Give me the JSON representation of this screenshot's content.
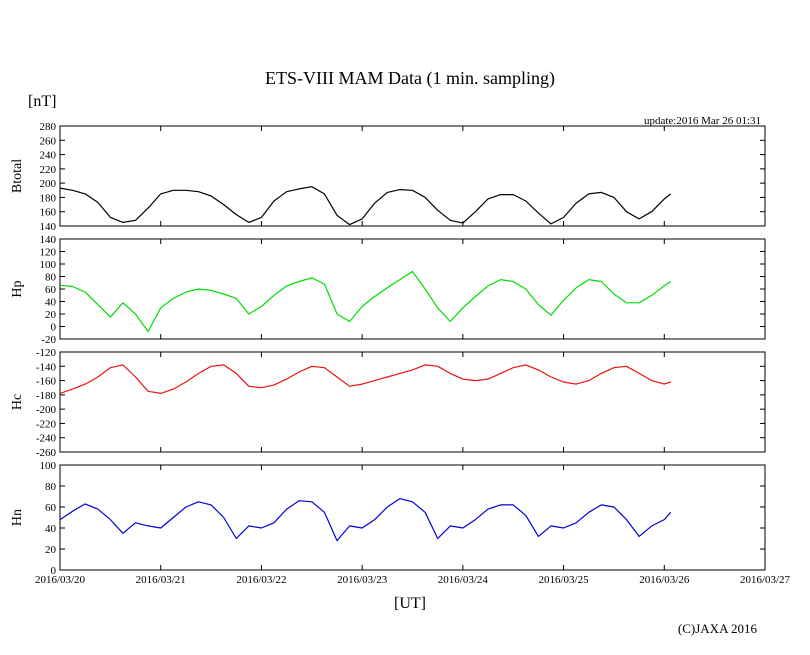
{
  "page": {
    "title": "ETS-VIII MAM Data (1 min. sampling)",
    "unit_label": "[nT]",
    "update_text": "update:2016 Mar 26 01:31",
    "xlabel": "[UT]",
    "copyright": "(C)JAXA 2016"
  },
  "colors": {
    "btotal": "#000000",
    "hp": "#00dd00",
    "hc": "#ee1111",
    "hn": "#0000dd"
  },
  "chart_data": [
    {
      "type": "line",
      "ylabel": "Btotal",
      "ylim": [
        140,
        280
      ],
      "yticks": [
        140,
        160,
        180,
        200,
        220,
        240,
        260,
        280
      ],
      "xlim": [
        "2016/03/20",
        "2016/03/27"
      ],
      "xticks": [
        "2016/03/20",
        "2016/03/21",
        "2016/03/22",
        "2016/03/23",
        "2016/03/24",
        "2016/03/25",
        "2016/03/26",
        "2016/03/27"
      ],
      "grid": false,
      "series": [
        {
          "color_key": "btotal",
          "x": [
            "2016/03/20 00:00",
            "2016/03/20 03:00",
            "2016/03/20 06:00",
            "2016/03/20 09:00",
            "2016/03/20 12:00",
            "2016/03/20 15:00",
            "2016/03/20 18:00",
            "2016/03/20 21:00",
            "2016/03/21 00:00",
            "2016/03/21 03:00",
            "2016/03/21 06:00",
            "2016/03/21 09:00",
            "2016/03/21 12:00",
            "2016/03/21 15:00",
            "2016/03/21 18:00",
            "2016/03/21 21:00",
            "2016/03/22 00:00",
            "2016/03/22 03:00",
            "2016/03/22 06:00",
            "2016/03/22 09:00",
            "2016/03/22 12:00",
            "2016/03/22 15:00",
            "2016/03/22 18:00",
            "2016/03/22 21:00",
            "2016/03/23 00:00",
            "2016/03/23 03:00",
            "2016/03/23 06:00",
            "2016/03/23 09:00",
            "2016/03/23 12:00",
            "2016/03/23 15:00",
            "2016/03/23 18:00",
            "2016/03/23 21:00",
            "2016/03/24 00:00",
            "2016/03/24 03:00",
            "2016/03/24 06:00",
            "2016/03/24 09:00",
            "2016/03/24 12:00",
            "2016/03/24 15:00",
            "2016/03/24 18:00",
            "2016/03/24 21:00",
            "2016/03/25 00:00",
            "2016/03/25 03:00",
            "2016/03/25 06:00",
            "2016/03/25 09:00",
            "2016/03/25 12:00",
            "2016/03/25 15:00",
            "2016/03/25 18:00",
            "2016/03/25 21:00",
            "2016/03/26 00:00",
            "2016/03/26 01:31"
          ],
          "y": [
            193,
            190,
            185,
            173,
            152,
            145,
            148,
            165,
            185,
            190,
            190,
            188,
            182,
            170,
            156,
            145,
            152,
            175,
            188,
            192,
            195,
            185,
            155,
            142,
            150,
            172,
            187,
            191,
            190,
            180,
            162,
            148,
            144,
            160,
            178,
            184,
            184,
            175,
            158,
            143,
            152,
            172,
            185,
            187,
            180,
            160,
            150,
            160,
            178,
            185
          ]
        }
      ]
    },
    {
      "type": "line",
      "ylabel": "Hp",
      "ylim": [
        -20,
        140
      ],
      "yticks": [
        -20,
        0,
        20,
        40,
        60,
        80,
        100,
        120,
        140
      ],
      "xlim": [
        "2016/03/20",
        "2016/03/27"
      ],
      "xticks": [
        "2016/03/20",
        "2016/03/21",
        "2016/03/22",
        "2016/03/23",
        "2016/03/24",
        "2016/03/25",
        "2016/03/26",
        "2016/03/27"
      ],
      "grid": false,
      "series": [
        {
          "color_key": "hp",
          "x": [
            "2016/03/20 00:00",
            "2016/03/20 03:00",
            "2016/03/20 06:00",
            "2016/03/20 09:00",
            "2016/03/20 12:00",
            "2016/03/20 15:00",
            "2016/03/20 18:00",
            "2016/03/20 21:00",
            "2016/03/21 00:00",
            "2016/03/21 03:00",
            "2016/03/21 06:00",
            "2016/03/21 09:00",
            "2016/03/21 12:00",
            "2016/03/21 15:00",
            "2016/03/21 18:00",
            "2016/03/21 21:00",
            "2016/03/22 00:00",
            "2016/03/22 03:00",
            "2016/03/22 06:00",
            "2016/03/22 09:00",
            "2016/03/22 12:00",
            "2016/03/22 15:00",
            "2016/03/22 18:00",
            "2016/03/22 21:00",
            "2016/03/23 00:00",
            "2016/03/23 03:00",
            "2016/03/23 06:00",
            "2016/03/23 09:00",
            "2016/03/23 12:00",
            "2016/03/23 15:00",
            "2016/03/23 18:00",
            "2016/03/23 21:00",
            "2016/03/24 00:00",
            "2016/03/24 03:00",
            "2016/03/24 06:00",
            "2016/03/24 09:00",
            "2016/03/24 12:00",
            "2016/03/24 15:00",
            "2016/03/24 18:00",
            "2016/03/24 21:00",
            "2016/03/25 00:00",
            "2016/03/25 03:00",
            "2016/03/25 06:00",
            "2016/03/25 09:00",
            "2016/03/25 12:00",
            "2016/03/25 15:00",
            "2016/03/25 18:00",
            "2016/03/25 21:00",
            "2016/03/26 00:00",
            "2016/03/26 01:31"
          ],
          "y": [
            66,
            64,
            55,
            35,
            15,
            38,
            20,
            -8,
            30,
            45,
            55,
            60,
            58,
            52,
            45,
            20,
            32,
            50,
            65,
            72,
            78,
            68,
            20,
            8,
            32,
            48,
            62,
            75,
            88,
            60,
            30,
            8,
            30,
            48,
            65,
            75,
            72,
            60,
            35,
            18,
            42,
            62,
            75,
            72,
            52,
            38,
            38,
            50,
            65,
            72
          ]
        }
      ]
    },
    {
      "type": "line",
      "ylabel": "Hc",
      "ylim": [
        -260,
        -120
      ],
      "yticks": [
        -260,
        -240,
        -220,
        -200,
        -180,
        -160,
        -140,
        -120
      ],
      "xlim": [
        "2016/03/20",
        "2016/03/27"
      ],
      "xticks": [
        "2016/03/20",
        "2016/03/21",
        "2016/03/22",
        "2016/03/23",
        "2016/03/24",
        "2016/03/25",
        "2016/03/26",
        "2016/03/27"
      ],
      "grid": false,
      "series": [
        {
          "color_key": "hc",
          "x": [
            "2016/03/20 00:00",
            "2016/03/20 03:00",
            "2016/03/20 06:00",
            "2016/03/20 09:00",
            "2016/03/20 12:00",
            "2016/03/20 15:00",
            "2016/03/20 18:00",
            "2016/03/20 21:00",
            "2016/03/21 00:00",
            "2016/03/21 03:00",
            "2016/03/21 06:00",
            "2016/03/21 09:00",
            "2016/03/21 12:00",
            "2016/03/21 15:00",
            "2016/03/21 18:00",
            "2016/03/21 21:00",
            "2016/03/22 00:00",
            "2016/03/22 03:00",
            "2016/03/22 06:00",
            "2016/03/22 09:00",
            "2016/03/22 12:00",
            "2016/03/22 15:00",
            "2016/03/22 18:00",
            "2016/03/22 21:00",
            "2016/03/23 00:00",
            "2016/03/23 03:00",
            "2016/03/23 06:00",
            "2016/03/23 09:00",
            "2016/03/23 12:00",
            "2016/03/23 15:00",
            "2016/03/23 18:00",
            "2016/03/23 21:00",
            "2016/03/24 00:00",
            "2016/03/24 03:00",
            "2016/03/24 06:00",
            "2016/03/24 09:00",
            "2016/03/24 12:00",
            "2016/03/24 15:00",
            "2016/03/24 18:00",
            "2016/03/24 21:00",
            "2016/03/25 00:00",
            "2016/03/25 03:00",
            "2016/03/25 06:00",
            "2016/03/25 09:00",
            "2016/03/25 12:00",
            "2016/03/25 15:00",
            "2016/03/25 18:00",
            "2016/03/25 21:00",
            "2016/03/26 00:00",
            "2016/03/26 01:31"
          ],
          "y": [
            -178,
            -172,
            -165,
            -155,
            -142,
            -138,
            -155,
            -175,
            -178,
            -172,
            -162,
            -150,
            -140,
            -138,
            -150,
            -168,
            -170,
            -166,
            -158,
            -148,
            -140,
            -142,
            -155,
            -168,
            -165,
            -160,
            -155,
            -150,
            -145,
            -138,
            -140,
            -150,
            -158,
            -160,
            -158,
            -150,
            -142,
            -138,
            -145,
            -155,
            -162,
            -165,
            -160,
            -150,
            -142,
            -140,
            -150,
            -160,
            -165,
            -162
          ]
        }
      ]
    },
    {
      "type": "line",
      "ylabel": "Hn",
      "ylim": [
        0,
        100
      ],
      "yticks": [
        0,
        20,
        40,
        60,
        80,
        100
      ],
      "xlim": [
        "2016/03/20",
        "2016/03/27"
      ],
      "xticks": [
        "2016/03/20",
        "2016/03/21",
        "2016/03/22",
        "2016/03/23",
        "2016/03/24",
        "2016/03/25",
        "2016/03/26",
        "2016/03/27"
      ],
      "grid": false,
      "series": [
        {
          "color_key": "hn",
          "x": [
            "2016/03/20 00:00",
            "2016/03/20 03:00",
            "2016/03/20 06:00",
            "2016/03/20 09:00",
            "2016/03/20 12:00",
            "2016/03/20 15:00",
            "2016/03/20 18:00",
            "2016/03/20 21:00",
            "2016/03/21 00:00",
            "2016/03/21 03:00",
            "2016/03/21 06:00",
            "2016/03/21 09:00",
            "2016/03/21 12:00",
            "2016/03/21 15:00",
            "2016/03/21 18:00",
            "2016/03/21 21:00",
            "2016/03/22 00:00",
            "2016/03/22 03:00",
            "2016/03/22 06:00",
            "2016/03/22 09:00",
            "2016/03/22 12:00",
            "2016/03/22 15:00",
            "2016/03/22 18:00",
            "2016/03/22 21:00",
            "2016/03/23 00:00",
            "2016/03/23 03:00",
            "2016/03/23 06:00",
            "2016/03/23 09:00",
            "2016/03/23 12:00",
            "2016/03/23 15:00",
            "2016/03/23 18:00",
            "2016/03/23 21:00",
            "2016/03/24 00:00",
            "2016/03/24 03:00",
            "2016/03/24 06:00",
            "2016/03/24 09:00",
            "2016/03/24 12:00",
            "2016/03/24 15:00",
            "2016/03/24 18:00",
            "2016/03/24 21:00",
            "2016/03/25 00:00",
            "2016/03/25 03:00",
            "2016/03/25 06:00",
            "2016/03/25 09:00",
            "2016/03/25 12:00",
            "2016/03/25 15:00",
            "2016/03/25 18:00",
            "2016/03/25 21:00",
            "2016/03/26 00:00",
            "2016/03/26 01:31"
          ],
          "y": [
            48,
            56,
            63,
            58,
            48,
            35,
            45,
            42,
            40,
            50,
            60,
            65,
            62,
            50,
            30,
            42,
            40,
            45,
            58,
            66,
            65,
            55,
            28,
            42,
            40,
            48,
            60,
            68,
            65,
            55,
            30,
            42,
            40,
            48,
            58,
            62,
            62,
            52,
            32,
            42,
            40,
            45,
            55,
            62,
            60,
            48,
            32,
            42,
            48,
            55
          ]
        }
      ]
    }
  ]
}
